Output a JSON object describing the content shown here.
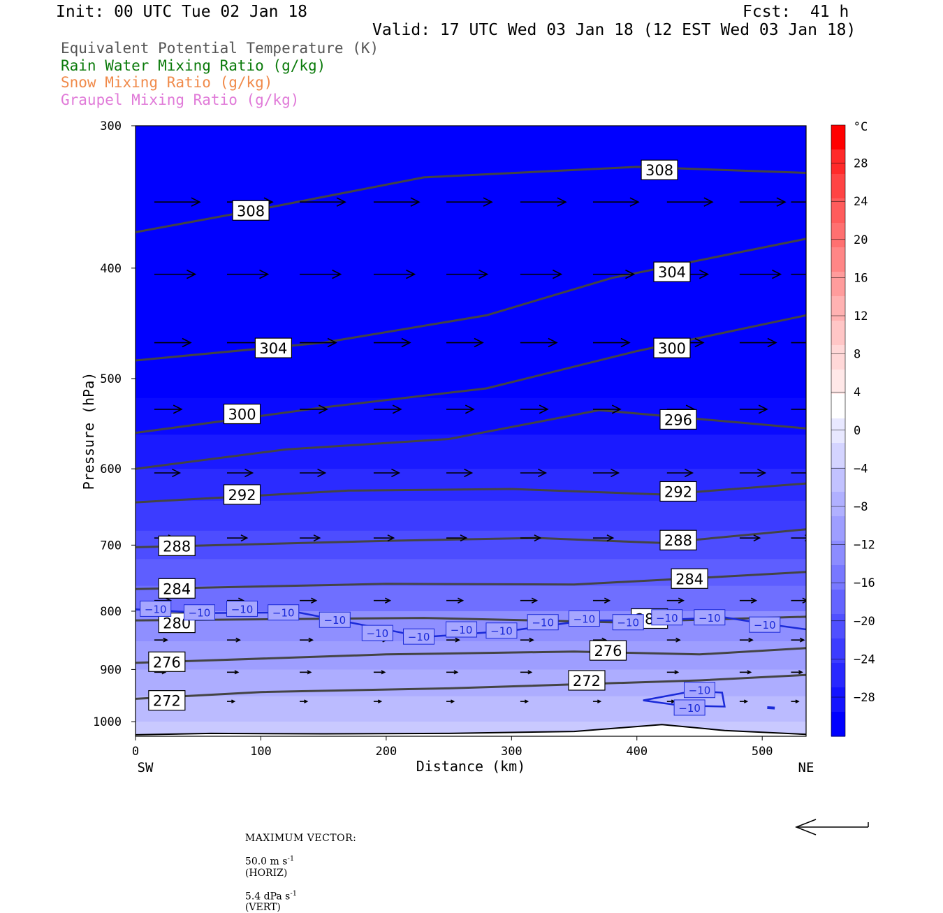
{
  "header": {
    "init": "Init: 00 UTC Tue 02 Jan 18",
    "fcst": "Fcst:  41 h",
    "valid": "Valid: 17 UTC Wed 03 Jan 18 (12 EST Wed 03 Jan 18)"
  },
  "legend": [
    {
      "label": "Equivalent Potential Temperature (K)",
      "color": "#555555"
    },
    {
      "label": "Rain Water Mixing Ratio (g/kg)",
      "color": "#0a7a0a"
    },
    {
      "label": "Snow Mixing Ratio (g/kg)",
      "color": "#f08a4a"
    },
    {
      "label": "Graupel Mixing Ratio (g/kg)",
      "color": "#e07ad8"
    }
  ],
  "chart_data": {
    "type": "heatmap",
    "ylabel": "Pressure (hPa)",
    "xlabel": "Distance (km)",
    "xlim": [
      0,
      535
    ],
    "ylim": [
      1030,
      300
    ],
    "y_scale": "log-pressure",
    "x_ticks": [
      0,
      100,
      200,
      300,
      400,
      500
    ],
    "y_ticks": [
      300,
      400,
      500,
      600,
      700,
      800,
      900,
      1000
    ],
    "x_ends": [
      "SW",
      "NE"
    ],
    "colorbar": {
      "unit": "°C",
      "ticks": [
        "28",
        "24",
        "20",
        "16",
        "12",
        "8",
        "4",
        "0",
        "−4",
        "−8",
        "−12",
        "−16",
        "−20",
        "−24",
        "−28"
      ],
      "colors": [
        "#ff0000",
        "#ff2a2a",
        "#ff4444",
        "#ff5c5c",
        "#ff7070",
        "#ff8686",
        "#ff9c9c",
        "#ffb2b2",
        "#ffc6c6",
        "#ffd8d8",
        "#ffe8e8",
        "#ffffff",
        "#e8e8ff",
        "#d4d4ff",
        "#c2c2ff",
        "#b0b0ff",
        "#9e9eff",
        "#8c8cff",
        "#7878ff",
        "#6464ff",
        "#5050ff",
        "#3c3cff",
        "#2828ff",
        "#1414ff",
        "#0000ff"
      ]
    },
    "temperature_bands": [
      {
        "p": 300,
        "temp": -30
      },
      {
        "p": 470,
        "temp": -30
      },
      {
        "p": 520,
        "temp": -28
      },
      {
        "p": 560,
        "temp": -26
      },
      {
        "p": 600,
        "temp": -24
      },
      {
        "p": 640,
        "temp": -22
      },
      {
        "p": 680,
        "temp": -20
      },
      {
        "p": 720,
        "temp": -18
      },
      {
        "p": 760,
        "temp": -16
      },
      {
        "p": 800,
        "temp": -12
      },
      {
        "p": 850,
        "temp": -10
      },
      {
        "p": 900,
        "temp": -8
      },
      {
        "p": 950,
        "temp": -6
      },
      {
        "p": 1000,
        "temp": -4
      },
      {
        "p": 1030,
        "temp": -2
      }
    ],
    "theta_e_contours": [
      {
        "label": "308",
        "label_at": [
          [
            92,
            356
          ],
          [
            418,
            328
          ]
        ],
        "points": [
          [
            0,
            372
          ],
          [
            100,
            355
          ],
          [
            230,
            333
          ],
          [
            400,
            326
          ],
          [
            535,
            330
          ]
        ]
      },
      {
        "label": "304",
        "label_at": [
          [
            110,
            470
          ],
          [
            428,
            403
          ]
        ],
        "points": [
          [
            0,
            482
          ],
          [
            150,
            465
          ],
          [
            280,
            440
          ],
          [
            380,
            408
          ],
          [
            535,
            377
          ]
        ]
      },
      {
        "label": "300",
        "label_at": [
          [
            85,
            537
          ],
          [
            428,
            470
          ]
        ],
        "points": [
          [
            0,
            558
          ],
          [
            150,
            530
          ],
          [
            280,
            510
          ],
          [
            400,
            473
          ],
          [
            535,
            440
          ]
        ]
      },
      {
        "label": "296",
        "label_at": [
          [
            433,
            543
          ]
        ],
        "points": [
          [
            0,
            600
          ],
          [
            120,
            577
          ],
          [
            250,
            565
          ],
          [
            370,
            533
          ],
          [
            535,
            553
          ]
        ]
      },
      {
        "label": "292",
        "label_at": [
          [
            85,
            632
          ],
          [
            433,
            628
          ]
        ],
        "points": [
          [
            0,
            642
          ],
          [
            170,
            627
          ],
          [
            300,
            625
          ],
          [
            420,
            632
          ],
          [
            535,
            618
          ]
        ]
      },
      {
        "label": "288",
        "label_at": [
          [
            33,
            701
          ],
          [
            433,
            693
          ]
        ],
        "points": [
          [
            0,
            703
          ],
          [
            200,
            694
          ],
          [
            320,
            690
          ],
          [
            420,
            697
          ],
          [
            535,
            678
          ]
        ]
      },
      {
        "label": "284",
        "label_at": [
          [
            33,
            764
          ],
          [
            442,
            749
          ]
        ],
        "points": [
          [
            0,
            765
          ],
          [
            200,
            757
          ],
          [
            350,
            758
          ],
          [
            450,
            748
          ],
          [
            535,
            739
          ]
        ]
      },
      {
        "label": "280",
        "label_at": [
          [
            33,
            819
          ],
          [
            410,
            812
          ]
        ],
        "points": [
          [
            0,
            815
          ],
          [
            230,
            811
          ],
          [
            380,
            818
          ],
          [
            535,
            809
          ]
        ]
      },
      {
        "label": "276",
        "label_at": [
          [
            25,
            886
          ],
          [
            377,
            866
          ]
        ],
        "points": [
          [
            0,
            888
          ],
          [
            200,
            873
          ],
          [
            350,
            868
          ],
          [
            450,
            873
          ],
          [
            535,
            862
          ]
        ]
      },
      {
        "label": "272",
        "label_at": [
          [
            25,
            958
          ],
          [
            360,
            920
          ]
        ],
        "points": [
          [
            0,
            955
          ],
          [
            100,
            942
          ],
          [
            250,
            935
          ],
          [
            450,
            920
          ],
          [
            535,
            910
          ]
        ]
      }
    ],
    "minus10_labels": [
      [
        16,
        796
      ],
      [
        51,
        802
      ],
      [
        85,
        796
      ],
      [
        118,
        802
      ],
      [
        159,
        814
      ],
      [
        193,
        836
      ],
      [
        226,
        842
      ],
      [
        260,
        830
      ],
      [
        292,
        832
      ],
      [
        325,
        818
      ],
      [
        358,
        812
      ],
      [
        393,
        818
      ],
      [
        424,
        810
      ],
      [
        458,
        810
      ],
      [
        502,
        822
      ],
      [
        450,
        938
      ],
      [
        442,
        972
      ]
    ],
    "arrow_rows": [
      {
        "p": 350,
        "len": 50
      },
      {
        "p": 405,
        "len": 45
      },
      {
        "p": 465,
        "len": 40
      },
      {
        "p": 532,
        "len": 30
      },
      {
        "p": 605,
        "len": 28
      },
      {
        "p": 690,
        "len": 22
      },
      {
        "p": 783,
        "len": 18
      },
      {
        "p": 848,
        "len": 14
      },
      {
        "p": 905,
        "len": 12
      },
      {
        "p": 960,
        "len": 8
      }
    ],
    "arrow_x": [
      15,
      73,
      131,
      190,
      248,
      307,
      365,
      424,
      482,
      523
    ]
  },
  "footer": {
    "max_vector_label": "MAXIMUM VECTOR:",
    "horiz": "50.0 m s",
    "horiz_sup": "-1",
    "horiz_tag": "(HORIZ)",
    "vert": "5.4 dPa s",
    "vert_sup": "-1",
    "vert_tag": "(VERT)"
  }
}
